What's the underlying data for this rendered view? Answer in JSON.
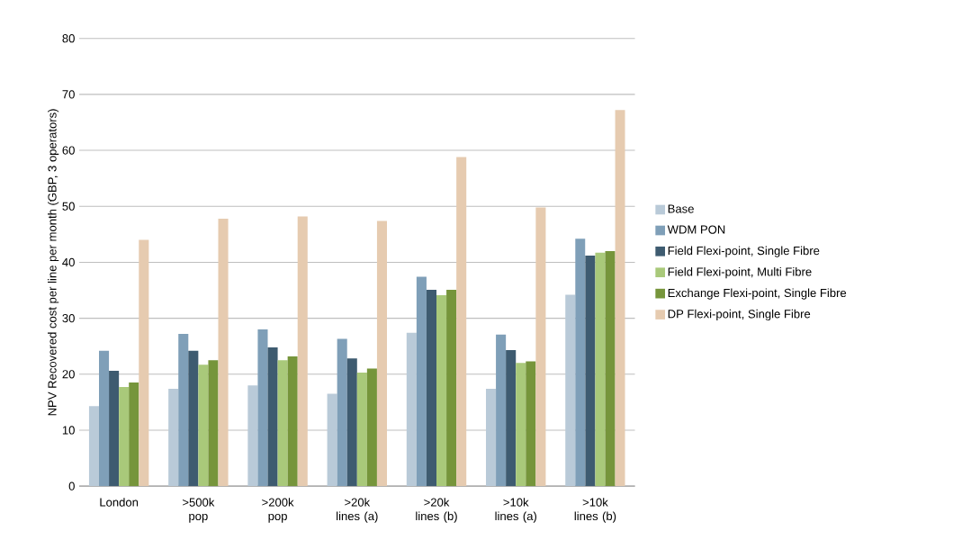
{
  "chart_data": {
    "type": "bar",
    "ylabel": "NPV Recovered cost per line per month (GBP, 3 operators)",
    "categories": [
      "London",
      ">500k pop",
      ">200k pop",
      ">20k lines (a)",
      ">20k lines (b)",
      ">10k lines (a)",
      ">10k lines (b)"
    ],
    "series": [
      {
        "name": "Base",
        "color": "#b9cad8",
        "values": [
          14.3,
          17.4,
          18.0,
          16.5,
          27.4,
          17.4,
          34.2
        ]
      },
      {
        "name": "WDM PON",
        "color": "#7f9fb8",
        "values": [
          24.2,
          27.2,
          28.0,
          26.3,
          37.4,
          27.1,
          44.2
        ]
      },
      {
        "name": "Field Flexi-point, Single Fibre",
        "color": "#3e5b70",
        "values": [
          20.6,
          24.2,
          24.8,
          22.8,
          35.1,
          24.3,
          41.2
        ]
      },
      {
        "name": "Field Flexi-point, Multi Fibre",
        "color": "#a9c97a",
        "values": [
          17.7,
          21.7,
          22.5,
          20.3,
          34.1,
          22.0,
          41.7
        ]
      },
      {
        "name": "Exchange Flexi-point, Single Fibre",
        "color": "#76953b",
        "values": [
          18.5,
          22.5,
          23.2,
          21.0,
          35.1,
          22.3,
          42.0
        ]
      },
      {
        "name": "DP Flexi-point, Single Fibre",
        "color": "#e6cbb0",
        "values": [
          44.0,
          47.8,
          48.2,
          47.4,
          58.8,
          49.8,
          67.2
        ]
      }
    ],
    "ylim": [
      0,
      80
    ],
    "yticks": [
      0,
      10,
      20,
      30,
      40,
      50,
      60,
      70,
      80
    ],
    "grid": "y",
    "legend": "right"
  }
}
